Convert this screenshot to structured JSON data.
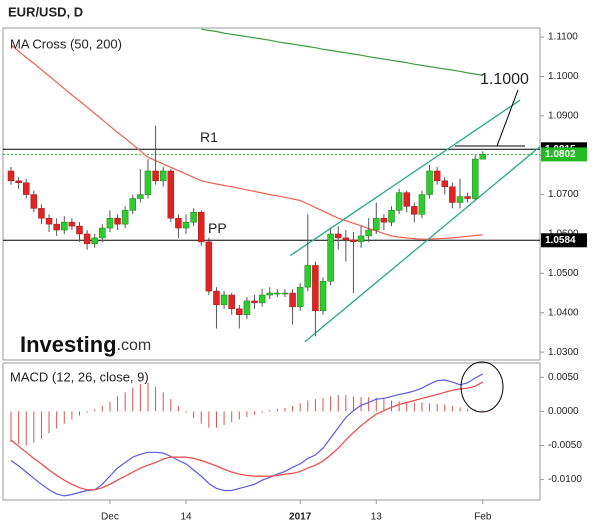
{
  "chart_data": [
    {
      "type": "candlestick",
      "title": "EUR/USD, D",
      "indicator": "MA Cross (50, 200)",
      "watermark": [
        "Investing",
        ".com"
      ],
      "categories": [
        null,
        null,
        null,
        null,
        null,
        null,
        null,
        null,
        null,
        null,
        null,
        null,
        null,
        "Dec",
        null,
        null,
        null,
        null,
        null,
        null,
        null,
        null,
        null,
        "14",
        null,
        null,
        null,
        null,
        null,
        null,
        null,
        null,
        null,
        null,
        null,
        null,
        null,
        null,
        "2017",
        null,
        null,
        null,
        null,
        null,
        null,
        null,
        null,
        null,
        "13",
        null,
        null,
        null,
        null,
        null,
        null,
        null,
        null,
        null,
        null,
        null,
        null,
        null,
        "Feb"
      ],
      "open": [
        1.076,
        1.0735,
        1.073,
        1.07,
        1.0665,
        1.064,
        1.0625,
        1.061,
        1.063,
        1.062,
        1.06,
        1.0575,
        1.059,
        1.0615,
        1.064,
        1.0625,
        1.066,
        1.069,
        1.07,
        1.076,
        1.0735,
        1.076,
        1.064,
        1.0615,
        1.063,
        1.0655,
        1.058,
        1.0455,
        1.042,
        1.0445,
        1.041,
        1.0395,
        1.043,
        1.0425,
        1.0445,
        1.045,
        1.045,
        1.045,
        1.0415,
        1.0465,
        1.052,
        1.0405,
        1.048,
        1.06,
        1.059,
        1.0585,
        1.058,
        1.0595,
        1.061,
        1.064,
        1.063,
        1.066,
        1.0705,
        1.067,
        1.065,
        1.07,
        1.076,
        1.0735,
        1.072,
        1.068,
        1.0695,
        1.069,
        1.079
      ],
      "high": [
        1.077,
        1.0745,
        1.074,
        1.071,
        1.0675,
        1.065,
        1.064,
        1.0645,
        1.064,
        1.063,
        1.061,
        1.06,
        1.0625,
        1.066,
        1.065,
        1.067,
        1.07,
        1.0765,
        1.079,
        1.0875,
        1.077,
        1.0765,
        1.065,
        1.065,
        1.0665,
        1.066,
        1.059,
        1.0465,
        1.0455,
        1.045,
        1.042,
        1.044,
        1.0445,
        1.046,
        1.0465,
        1.046,
        1.046,
        1.046,
        1.0475,
        1.065,
        1.053,
        1.049,
        1.0615,
        1.062,
        1.061,
        1.0605,
        1.062,
        1.064,
        1.068,
        1.065,
        1.067,
        1.0715,
        1.071,
        1.068,
        1.071,
        1.0775,
        1.077,
        1.0745,
        1.073,
        1.074,
        1.0705,
        1.08,
        1.081
      ],
      "low": [
        1.0725,
        1.0715,
        1.069,
        1.0655,
        1.0625,
        1.0605,
        1.0595,
        1.06,
        1.061,
        1.058,
        1.056,
        1.0565,
        1.058,
        1.0605,
        1.061,
        1.0615,
        1.065,
        1.068,
        1.069,
        1.0725,
        1.072,
        1.063,
        1.059,
        1.06,
        1.062,
        1.057,
        1.0445,
        1.036,
        1.041,
        1.0395,
        1.036,
        1.0385,
        1.041,
        1.0415,
        1.0435,
        1.044,
        1.044,
        1.037,
        1.0405,
        1.0455,
        1.034,
        1.0395,
        1.047,
        1.056,
        1.053,
        1.045,
        1.0565,
        1.058,
        1.06,
        1.061,
        1.062,
        1.065,
        1.0655,
        1.063,
        1.064,
        1.069,
        1.0725,
        1.07,
        1.0665,
        1.0665,
        1.068,
        1.0685,
        1.079
      ],
      "close": [
        1.0735,
        1.073,
        1.07,
        1.0665,
        1.064,
        1.0625,
        1.061,
        1.063,
        1.062,
        1.06,
        1.0575,
        1.059,
        1.0615,
        1.064,
        1.0625,
        1.066,
        1.069,
        1.07,
        1.076,
        1.0735,
        1.076,
        1.064,
        1.0615,
        1.063,
        1.0655,
        1.058,
        1.0455,
        1.042,
        1.0445,
        1.041,
        1.0395,
        1.043,
        1.0425,
        1.0445,
        1.045,
        1.045,
        1.045,
        1.0415,
        1.0465,
        1.052,
        1.0405,
        1.048,
        1.06,
        1.059,
        1.0585,
        1.058,
        1.0595,
        1.061,
        1.064,
        1.063,
        1.066,
        1.0705,
        1.067,
        1.065,
        1.07,
        1.076,
        1.0735,
        1.072,
        1.068,
        1.0695,
        1.069,
        1.079,
        1.0802
      ],
      "up_color": "#2ecc2e",
      "down_color": "#e02424",
      "series": [
        {
          "color": "#f06050",
          "values": [
            1.108,
            1.1064,
            1.1048,
            1.1033,
            1.1017,
            1.1001,
            1.0985,
            1.0969,
            1.0953,
            1.0938,
            1.0922,
            1.0906,
            1.089,
            1.0874,
            1.0858,
            1.0843,
            1.0827,
            1.0811,
            1.0795,
            1.0786,
            1.0778,
            1.0769,
            1.0761,
            1.0752,
            1.0744,
            1.0735,
            1.0731,
            1.0727,
            1.0723,
            1.072,
            1.0716,
            1.0712,
            1.0708,
            1.0704,
            1.07,
            1.0697,
            1.0693,
            1.0689,
            1.0685,
            1.0676,
            1.0667,
            1.0658,
            1.0649,
            1.064,
            1.0634,
            1.0627,
            1.0621,
            1.0614,
            1.0608,
            1.0601,
            1.0595,
            1.0592,
            1.059,
            1.0588,
            1.0587,
            1.0587,
            1.0588,
            1.0589,
            1.059,
            1.0592,
            1.0594,
            1.0596,
            1.0598
          ]
        },
        {
          "color": "#3c9c3c",
          "values": [
            null,
            null,
            null,
            null,
            null,
            null,
            null,
            null,
            null,
            null,
            null,
            null,
            null,
            null,
            null,
            null,
            null,
            null,
            null,
            null,
            null,
            null,
            null,
            null,
            null,
            1.112,
            1.1117,
            1.1114,
            1.111,
            1.1107,
            1.1104,
            1.1101,
            1.1098,
            1.1095,
            1.1092,
            1.1088,
            1.1085,
            1.1082,
            1.1079,
            1.1076,
            1.1073,
            1.1069,
            1.1066,
            1.1063,
            1.106,
            1.1057,
            1.1054,
            1.105,
            1.1047,
            1.1044,
            1.1041,
            1.1038,
            1.1035,
            1.1031,
            1.1028,
            1.1025,
            1.1022,
            1.1019,
            1.1016,
            1.1013,
            1.1009,
            1.1006,
            1.1003
          ]
        }
      ],
      "channel": [
        {
          "color": "#22aa88",
          "x": [
            36.7,
            66.9
          ],
          "y": [
            1.0545,
            1.094
          ]
        },
        {
          "color": "#22aa88",
          "x": [
            38.6,
            70.2
          ],
          "y": [
            1.0326,
            1.0833
          ]
        }
      ],
      "levels": [
        {
          "name": "R1",
          "value": 1.0815,
          "value_label": "1.0815",
          "color": "#000000",
          "style": "solid"
        },
        {
          "name": "PP",
          "value": 1.0584,
          "value_label": "1.0584",
          "color": "#000000",
          "style": "solid"
        }
      ],
      "last_price": {
        "value": 1.0802,
        "value_label": "1.0802",
        "color": "#22bb22"
      },
      "annotation": "1.1000",
      "ylim": [
        1.028,
        1.1123
      ],
      "yticks": [
        {
          "value": 1.11,
          "label": "1.1100"
        },
        {
          "value": 1.1,
          "label": "1.1000"
        },
        {
          "value": 1.09,
          "label": "1.0900"
        },
        {
          "value": 1.08,
          "label": "1.0800"
        },
        {
          "value": 1.07,
          "label": "1.0700"
        },
        {
          "value": 1.06,
          "label": "1.0600"
        },
        {
          "value": 1.05,
          "label": "1.0500"
        },
        {
          "value": 1.04,
          "label": "1.0400"
        },
        {
          "value": 1.03,
          "label": "1.0300"
        }
      ]
    },
    {
      "type": "line",
      "title": "MACD (12, 26, close, 9)",
      "ylim": [
        -0.013,
        0.0071
      ],
      "yticks": [
        {
          "value": 0.005,
          "label": "0.0050"
        },
        {
          "value": 0,
          "label": "0.0000"
        },
        {
          "value": -0.005,
          "label": "-0.0050"
        },
        {
          "value": -0.01,
          "label": "-0.0100"
        }
      ],
      "series": [
        {
          "type": "bar",
          "color": "#e05050",
          "values": [
            -0.0045,
            -0.0048,
            -0.005,
            -0.0046,
            -0.004,
            -0.0032,
            -0.0025,
            -0.0018,
            -0.0012,
            -0.0006,
            -0.0002,
            0.0003,
            0.0008,
            0.0014,
            0.0022,
            0.0028,
            0.0035,
            0.004,
            0.0042,
            0.0036,
            0.0028,
            0.0018,
            0.0008,
            -0.0002,
            -0.001,
            -0.0018,
            -0.0024,
            -0.0024,
            -0.002,
            -0.0016,
            -0.0012,
            -0.0008,
            -0.0005,
            -0.0002,
            0.0002,
            0.0004,
            0.0005,
            0.0008,
            0.0012,
            0.0016,
            0.0018,
            0.002,
            0.0022,
            0.0024,
            0.0024,
            0.0022,
            0.0021,
            0.0021,
            0.002,
            0.0018,
            0.0016,
            0.0015,
            0.0014,
            0.0013,
            0.0013,
            0.0012,
            0.0011,
            0.001,
            0.0008,
            0.0006,
            0.0004,
            0.0003,
            0.0002
          ]
        },
        {
          "type": "line",
          "color": "#5a5ae6",
          "values": [
            -0.0072,
            -0.008,
            -0.0089,
            -0.0098,
            -0.0107,
            -0.0115,
            -0.0121,
            -0.0124,
            -0.0122,
            -0.0119,
            -0.0116,
            -0.0115,
            -0.0107,
            -0.0095,
            -0.0083,
            -0.0075,
            -0.0067,
            -0.0063,
            -0.006,
            -0.006,
            -0.0061,
            -0.0066,
            -0.0072,
            -0.0077,
            -0.0086,
            -0.0095,
            -0.0106,
            -0.0113,
            -0.0116,
            -0.0116,
            -0.0113,
            -0.011,
            -0.0107,
            -0.0101,
            -0.0097,
            -0.0092,
            -0.0088,
            -0.0082,
            -0.0077,
            -0.0069,
            -0.0064,
            -0.0054,
            -0.0039,
            -0.0024,
            -0.0009,
            0.0001,
            0.0009,
            0.0013,
            0.0018,
            0.0019,
            0.0022,
            0.0025,
            0.0027,
            0.003,
            0.0034,
            0.004,
            0.0045,
            0.0046,
            0.0043,
            0.0039,
            0.0042,
            0.0049,
            0.0055
          ]
        },
        {
          "type": "line",
          "color": "#ee4444",
          "values": [
            -0.0042,
            -0.0051,
            -0.006,
            -0.0069,
            -0.0077,
            -0.0086,
            -0.0094,
            -0.0101,
            -0.0107,
            -0.0112,
            -0.0115,
            -0.0115,
            -0.0112,
            -0.0107,
            -0.0101,
            -0.0095,
            -0.0089,
            -0.0083,
            -0.0079,
            -0.0075,
            -0.007,
            -0.0067,
            -0.0067,
            -0.0067,
            -0.0069,
            -0.0072,
            -0.0076,
            -0.008,
            -0.0085,
            -0.0089,
            -0.0092,
            -0.0094,
            -0.0095,
            -0.0095,
            -0.0095,
            -0.0094,
            -0.0092,
            -0.0091,
            -0.0088,
            -0.0083,
            -0.0079,
            -0.0073,
            -0.0064,
            -0.0054,
            -0.0042,
            -0.0031,
            -0.0021,
            -0.0012,
            -0.0004,
            0.0001,
            0.0006,
            0.001,
            0.0013,
            0.0016,
            0.0019,
            0.0022,
            0.0025,
            0.0028,
            0.0031,
            0.0033,
            0.0034,
            0.0037,
            0.0043
          ]
        }
      ]
    }
  ]
}
